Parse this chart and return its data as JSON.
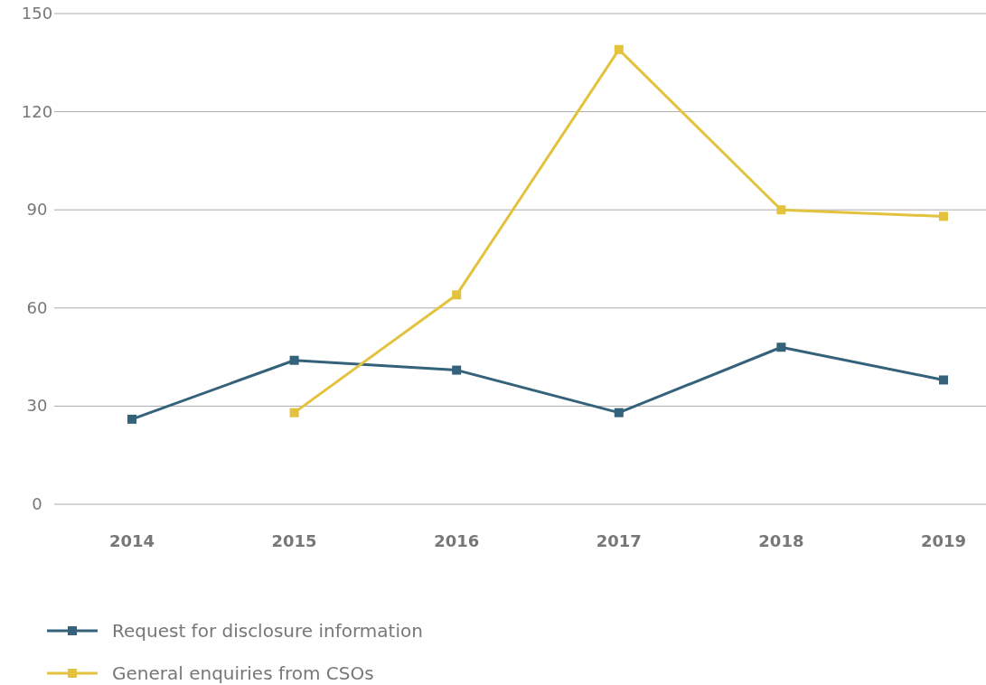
{
  "chart_data": {
    "type": "line",
    "categories": [
      "2014",
      "2015",
      "2016",
      "2017",
      "2018",
      "2019"
    ],
    "series": [
      {
        "name": "Request for disclosure information",
        "color": "#34627a",
        "values": [
          26,
          44,
          41,
          28,
          48,
          38
        ]
      },
      {
        "name": "General enquiries from CSOs",
        "color": "#e3c23e",
        "values": [
          null,
          28,
          64,
          139,
          90,
          88
        ]
      }
    ],
    "ylim": [
      0,
      150
    ],
    "yticks": [
      0,
      30,
      60,
      90,
      120,
      150
    ],
    "grid": "y",
    "legend": "bottom left",
    "marker": "square",
    "line_style": "solid"
  }
}
